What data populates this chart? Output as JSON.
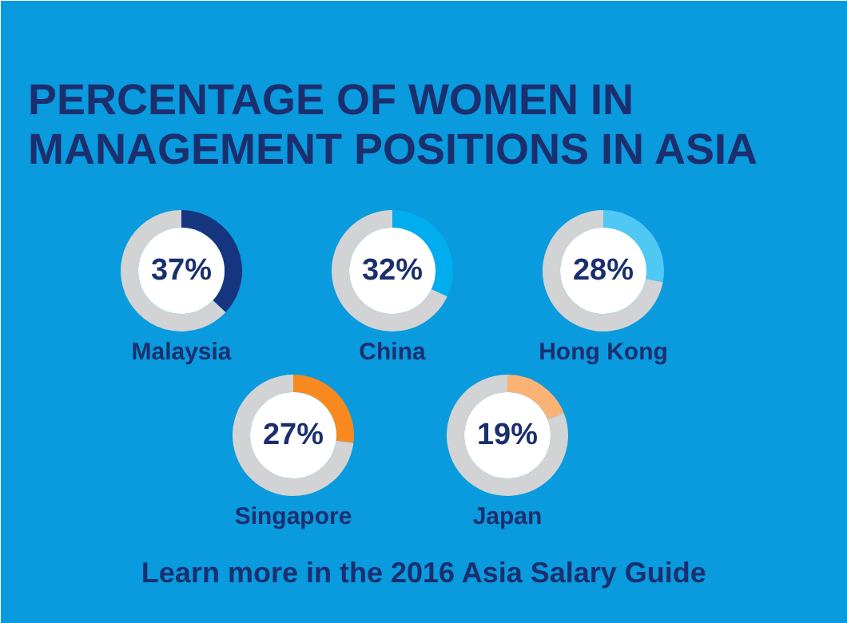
{
  "chart_data": [
    {
      "type": "other",
      "title": "PERCENTAGE OF WOMEN IN MANAGEMENT POSITIONS IN ASIA",
      "annotations": [
        "Learn more in the 2016 Asia Salary Guide"
      ]
    },
    {
      "type": "donut",
      "categories": [
        null,
        null
      ],
      "values": [
        37,
        63
      ],
      "colors": [
        "#16357f",
        "#d1d3d4"
      ],
      "value_labels": [
        "37%",
        null
      ],
      "xlabel": "Malaysia"
    },
    {
      "type": "donut",
      "categories": [
        null,
        null
      ],
      "values": [
        32,
        68
      ],
      "colors": [
        "#00aeef",
        "#d1d3d4"
      ],
      "value_labels": [
        "32%",
        null
      ],
      "xlabel": "China"
    },
    {
      "type": "donut",
      "categories": [
        null,
        null
      ],
      "values": [
        28,
        72
      ],
      "colors": [
        "#4fc8f4",
        "#d1d3d4"
      ],
      "value_labels": [
        "28%",
        null
      ],
      "xlabel": "Hong Kong"
    },
    {
      "type": "donut",
      "categories": [
        null,
        null
      ],
      "values": [
        27,
        73
      ],
      "colors": [
        "#f7891f",
        "#d1d3d4"
      ],
      "value_labels": [
        "27%",
        null
      ],
      "xlabel": "Singapore"
    },
    {
      "type": "donut",
      "categories": [
        null,
        null
      ],
      "values": [
        19,
        81
      ],
      "colors": [
        "#fbb375",
        "#d1d3d4"
      ],
      "value_labels": [
        "19%",
        null
      ],
      "xlabel": "Japan"
    }
  ]
}
